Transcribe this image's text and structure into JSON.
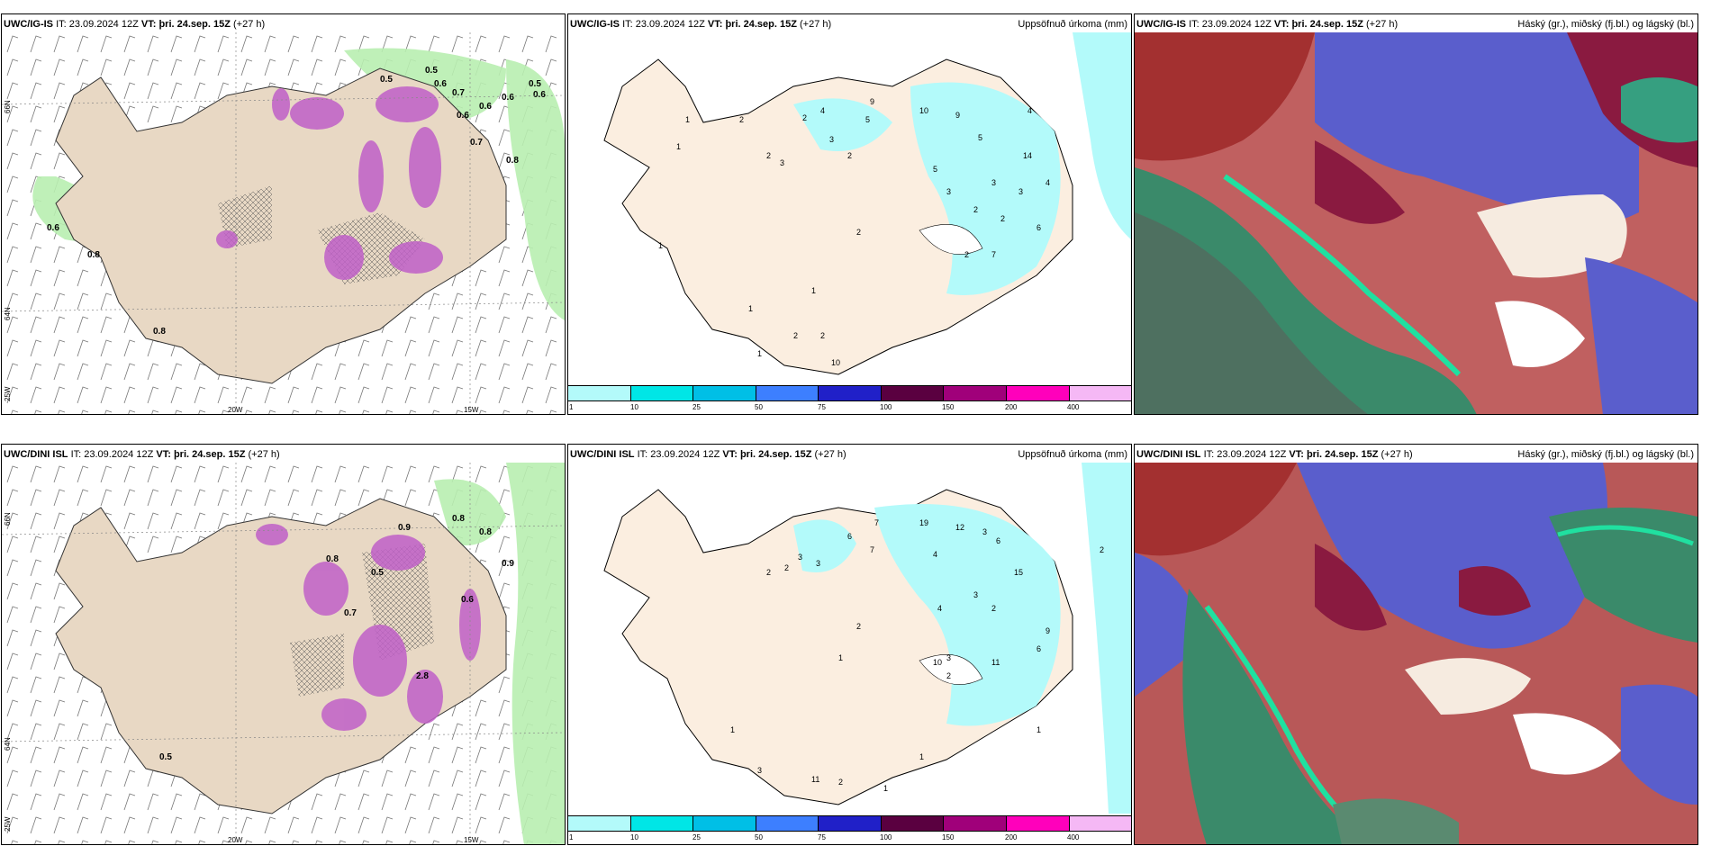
{
  "panels": {
    "top_left": {
      "model": "UWC/IG-IS",
      "it_label": "IT:",
      "it": "23.09.2024 12Z",
      "vt_label": "VT:",
      "vt": "þri. 24.sep. 15Z",
      "lead": "(+27 h)"
    },
    "top_mid": {
      "model": "UWC/IG-IS",
      "it_label": "IT:",
      "it": "23.09.2024 12Z",
      "vt_label": "VT:",
      "vt": "þri. 24.sep. 15Z",
      "lead": "(+27 h)",
      "title": "Uppsöfnuð úrkoma (mm)"
    },
    "top_right": {
      "model": "UWC/IG-IS",
      "it_label": "IT:",
      "it": "23.09.2024 12Z",
      "vt_label": "VT:",
      "vt": "þri. 24.sep. 15Z",
      "lead": "(+27 h)",
      "title": "Háský (gr.), miðský (fj.bl.) og lágský (bl.)"
    },
    "bot_left": {
      "model": "UWC/DINI ISL",
      "it_label": "IT:",
      "it": "23.09.2024 12Z",
      "vt_label": "VT:",
      "vt": "þri. 24.sep. 15Z",
      "lead": "(+27 h)"
    },
    "bot_mid": {
      "model": "UWC/DINI ISL",
      "it_label": "IT:",
      "it": "23.09.2024 12Z",
      "vt_label": "VT:",
      "vt": "þri. 24.sep. 15Z",
      "lead": "(+27 h)",
      "title": "Uppsöfnuð úrkoma (mm)"
    },
    "bot_right": {
      "model": "UWC/DINI ISL",
      "it_label": "IT:",
      "it": "23.09.2024 12Z",
      "vt_label": "VT:",
      "vt": "þri. 24.sep. 15Z",
      "lead": "(+27 h)",
      "title": "Háský (gr.), miðský (fj.bl.) og lágský (bl.)"
    }
  },
  "axes": {
    "lon_20": "20W",
    "lon_15": "15W",
    "lat_66": "66N",
    "lat_64": "64N",
    "lat_25": "25W"
  },
  "colorbar": {
    "labels": [
      "1",
      "10",
      "25",
      "50",
      "75",
      "100",
      "150",
      "200",
      "400"
    ],
    "colors": [
      "#b3fafa",
      "#00e6e6",
      "#00bfe6",
      "#3d7fff",
      "#2020c8",
      "#5a0040",
      "#a0007a",
      "#ff00bb",
      "#f5b8f5"
    ]
  },
  "wind_labels_top": [
    "0.6",
    "0.8",
    "0.8",
    "0.5",
    "0.6",
    "0.6",
    "0.6",
    "0.7",
    "0.8",
    "0.6",
    "0.5",
    "0.7",
    "0.6",
    "0.5"
  ],
  "wind_labels_bottom": [
    "0.8",
    "0.8",
    "0.9",
    "0.6",
    "0.5",
    "0.8",
    "0.9",
    "0.7",
    "2.8",
    "0.5"
  ],
  "precip_labels_top": [
    "1",
    "2",
    "1",
    "3",
    "2",
    "2",
    "4",
    "3",
    "2",
    "5",
    "10",
    "9",
    "5",
    "4",
    "14",
    "3",
    "2",
    "5",
    "3",
    "2",
    "3",
    "4",
    "2",
    "6",
    "7",
    "2",
    "1",
    "1",
    "2",
    "2",
    "1",
    "10",
    "1",
    "9"
  ],
  "precip_labels_bottom": [
    "2",
    "2",
    "3",
    "3",
    "6",
    "7",
    "7",
    "19",
    "12",
    "3",
    "6",
    "15",
    "4",
    "4",
    "3",
    "2",
    "9",
    "6",
    "3",
    "2",
    "11",
    "10",
    "2",
    "1",
    "1",
    "3",
    "11",
    "2",
    "1",
    "1",
    "1",
    "2"
  ]
}
